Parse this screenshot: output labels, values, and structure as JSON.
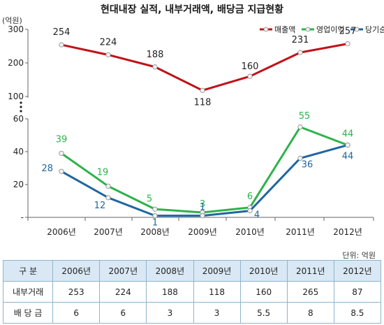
{
  "chart_data": {
    "type": "line",
    "title": "현대내장 실적, 내부거래액, 배당금 지급현황",
    "unit_label": "(억원)",
    "categories": [
      "2006년",
      "2007년",
      "2008년",
      "2009년",
      "2010년",
      "2011년",
      "2012년"
    ],
    "upper_axis": {
      "ticks": [
        "300",
        "200",
        "100"
      ],
      "ylim": [
        100,
        300
      ]
    },
    "lower_axis": {
      "ticks": [
        "60",
        "40",
        "20",
        "-"
      ],
      "ylim": [
        0,
        60
      ]
    },
    "series": [
      {
        "name": "매출액",
        "color": "#c0121a",
        "axis": "upper",
        "values": [
          254,
          224,
          188,
          118,
          160,
          231,
          257
        ]
      },
      {
        "name": "영업이익",
        "color": "#2db34a",
        "axis": "lower",
        "values": [
          39,
          19,
          5,
          3,
          6,
          55,
          44
        ]
      },
      {
        "name": "당기순이익",
        "color": "#1f66a0",
        "axis": "lower",
        "values": [
          28,
          12,
          1,
          1,
          4,
          36,
          44
        ]
      }
    ],
    "legend_position": "top-right"
  },
  "table": {
    "unit_note": "단위: 억원",
    "header_label": "구   분",
    "years": [
      "2006년",
      "2007년",
      "2008년",
      "2009년",
      "2010년",
      "2011년",
      "2012년"
    ],
    "rows": [
      {
        "label": "내부거래",
        "values": [
          "253",
          "224",
          "188",
          "118",
          "160",
          "265",
          "87"
        ]
      },
      {
        "label": "배 당 금",
        "values": [
          "6",
          "6",
          "3",
          "3",
          "5.5",
          "8",
          "8.5"
        ]
      }
    ]
  }
}
